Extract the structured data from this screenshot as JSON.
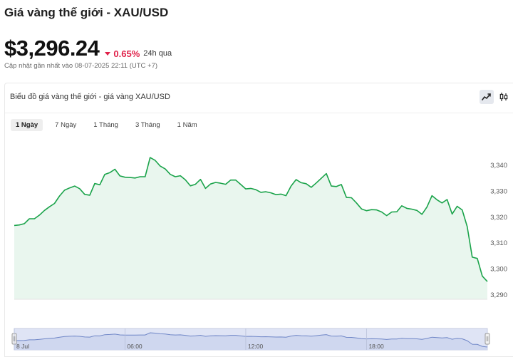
{
  "page": {
    "title": "Giá vàng thế giới - XAU/USD",
    "price": "$3,296.24",
    "change": "0.65%",
    "change_period": "24h qua",
    "change_color": "#e0224a",
    "updated": "Cập nhật gần nhất vào 08-07-2025 22:11 (UTC +7)"
  },
  "chart_card": {
    "title": "Biểu đồ giá vàng thế giới - giá vàng XAU/USD",
    "chart_type_icons": [
      "line-chart-icon",
      "candlestick-icon"
    ],
    "active_chart_type": "line",
    "tabs": [
      {
        "label": "1 Ngày",
        "active": true
      },
      {
        "label": "7 Ngày",
        "active": false
      },
      {
        "label": "1 Tháng",
        "active": false
      },
      {
        "label": "3 Tháng",
        "active": false
      },
      {
        "label": "1 Năm",
        "active": false
      }
    ]
  },
  "chart_data": {
    "type": "area",
    "line_color": "#1aa34a",
    "fill_color": "#e9f6ee",
    "ylim": [
      3288,
      3344
    ],
    "yticks": [
      3340,
      3330,
      3320,
      3310,
      3300,
      3290
    ],
    "ytick_labels": [
      "3,340",
      "3,330",
      "3,320",
      "3,310",
      "3,300",
      "3,290"
    ],
    "values": [
      3316.8,
      3317.0,
      3317.5,
      3319.4,
      3319.4,
      3320.8,
      3322.6,
      3324.0,
      3325.3,
      3328.2,
      3330.4,
      3331.3,
      3332.0,
      3331.0,
      3328.8,
      3328.5,
      3333.0,
      3332.5,
      3336.5,
      3337.2,
      3338.5,
      3335.9,
      3335.4,
      3335.3,
      3335.1,
      3335.6,
      3335.6,
      3343.0,
      3341.9,
      3339.7,
      3338.6,
      3336.5,
      3335.6,
      3336.0,
      3334.4,
      3332.1,
      3332.7,
      3334.6,
      3331.1,
      3332.8,
      3333.4,
      3333.1,
      3332.7,
      3334.3,
      3334.3,
      3332.6,
      3330.9,
      3331.1,
      3330.6,
      3329.6,
      3329.8,
      3329.4,
      3328.7,
      3328.9,
      3328.3,
      3332.0,
      3334.5,
      3333.3,
      3332.9,
      3331.5,
      3333.2,
      3335.0,
      3336.8,
      3332.0,
      3331.8,
      3332.6,
      3327.6,
      3327.5,
      3325.5,
      3323.2,
      3322.5,
      3322.9,
      3322.8,
      3322.0,
      3320.6,
      3322.0,
      3322.1,
      3324.4,
      3323.4,
      3323.1,
      3322.6,
      3321.1,
      3323.9,
      3328.3,
      3326.7,
      3325.5,
      3326.8,
      3321.2,
      3324.2,
      3322.8,
      3316.4,
      3304.6,
      3304.1,
      3297.3,
      3295.2
    ],
    "x_labels": [
      {
        "label": "8 Jul",
        "index": 0
      },
      {
        "label": "06:00",
        "index": 22
      },
      {
        "label": "12:00",
        "index": 46
      },
      {
        "label": "18:00",
        "index": 70
      }
    ],
    "grid": false,
    "navigator": true
  }
}
